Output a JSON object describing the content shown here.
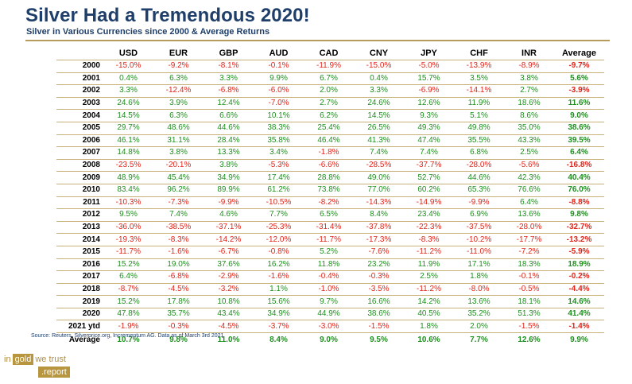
{
  "title": "Silver Had a Tremendous 2020!",
  "subtitle": "Silver in Various Currencies since 2000 & Average Returns",
  "table": {
    "columns": [
      "USD",
      "EUR",
      "GBP",
      "AUD",
      "CAD",
      "CNY",
      "JPY",
      "CHF",
      "INR",
      "Average"
    ],
    "rows": [
      {
        "year": "2000",
        "values": [
          "-15.0%",
          "-9.2%",
          "-8.1%",
          "-0.1%",
          "-11.9%",
          "-15.0%",
          "-5.0%",
          "-13.9%",
          "-8.9%",
          "-9.7%"
        ]
      },
      {
        "year": "2001",
        "values": [
          "0.4%",
          "6.3%",
          "3.3%",
          "9.9%",
          "6.7%",
          "0.4%",
          "15.7%",
          "3.5%",
          "3.8%",
          "5.6%"
        ]
      },
      {
        "year": "2002",
        "values": [
          "3.3%",
          "-12.4%",
          "-6.8%",
          "-6.0%",
          "2.0%",
          "3.3%",
          "-6.9%",
          "-14.1%",
          "2.7%",
          "-3.9%"
        ]
      },
      {
        "year": "2003",
        "values": [
          "24.6%",
          "3.9%",
          "12.4%",
          "-7.0%",
          "2.7%",
          "24.6%",
          "12.6%",
          "11.9%",
          "18.6%",
          "11.6%"
        ]
      },
      {
        "year": "2004",
        "values": [
          "14.5%",
          "6.3%",
          "6.6%",
          "10.1%",
          "6.2%",
          "14.5%",
          "9.3%",
          "5.1%",
          "8.6%",
          "9.0%"
        ]
      },
      {
        "year": "2005",
        "values": [
          "29.7%",
          "48.6%",
          "44.6%",
          "38.3%",
          "25.4%",
          "26.5%",
          "49.3%",
          "49.8%",
          "35.0%",
          "38.6%"
        ]
      },
      {
        "year": "2006",
        "values": [
          "46.1%",
          "31.1%",
          "28.4%",
          "35.8%",
          "46.4%",
          "41.3%",
          "47.4%",
          "35.5%",
          "43.3%",
          "39.5%"
        ]
      },
      {
        "year": "2007",
        "values": [
          "14.8%",
          "3.8%",
          "13.3%",
          "3.4%",
          "-1.8%",
          "7.4%",
          "7.4%",
          "6.8%",
          "2.5%",
          "6.4%"
        ]
      },
      {
        "year": "2008",
        "values": [
          "-23.5%",
          "-20.1%",
          "3.8%",
          "-5.3%",
          "-6.6%",
          "-28.5%",
          "-37.7%",
          "-28.0%",
          "-5.6%",
          "-16.8%"
        ]
      },
      {
        "year": "2009",
        "values": [
          "48.9%",
          "45.4%",
          "34.9%",
          "17.4%",
          "28.8%",
          "49.0%",
          "52.7%",
          "44.6%",
          "42.3%",
          "40.4%"
        ]
      },
      {
        "year": "2010",
        "values": [
          "83.4%",
          "96.2%",
          "89.9%",
          "61.2%",
          "73.8%",
          "77.0%",
          "60.2%",
          "65.3%",
          "76.6%",
          "76.0%"
        ]
      },
      {
        "year": "2011",
        "values": [
          "-10.3%",
          "-7.3%",
          "-9.9%",
          "-10.5%",
          "-8.2%",
          "-14.3%",
          "-14.9%",
          "-9.9%",
          "6.4%",
          "-8.8%"
        ]
      },
      {
        "year": "2012",
        "values": [
          "9.5%",
          "7.4%",
          "4.6%",
          "7.7%",
          "6.5%",
          "8.4%",
          "23.4%",
          "6.9%",
          "13.6%",
          "9.8%"
        ]
      },
      {
        "year": "2013",
        "values": [
          "-36.0%",
          "-38.5%",
          "-37.1%",
          "-25.3%",
          "-31.4%",
          "-37.8%",
          "-22.3%",
          "-37.5%",
          "-28.0%",
          "-32.7%"
        ]
      },
      {
        "year": "2014",
        "values": [
          "-19.3%",
          "-8.3%",
          "-14.2%",
          "-12.0%",
          "-11.7%",
          "-17.3%",
          "-8.3%",
          "-10.2%",
          "-17.7%",
          "-13.2%"
        ]
      },
      {
        "year": "2015",
        "values": [
          "-11.7%",
          "-1.6%",
          "-6.7%",
          "-0.8%",
          "5.2%",
          "-7.6%",
          "-11.2%",
          "-11.0%",
          "-7.2%",
          "-5.9%"
        ]
      },
      {
        "year": "2016",
        "values": [
          "15.2%",
          "19.0%",
          "37.6%",
          "16.2%",
          "11.8%",
          "23.2%",
          "11.9%",
          "17.1%",
          "18.3%",
          "18.9%"
        ]
      },
      {
        "year": "2017",
        "values": [
          "6.4%",
          "-6.8%",
          "-2.9%",
          "-1.6%",
          "-0.4%",
          "-0.3%",
          "2.5%",
          "1.8%",
          "-0.1%",
          "-0.2%"
        ]
      },
      {
        "year": "2018",
        "values": [
          "-8.7%",
          "-4.5%",
          "-3.2%",
          "1.1%",
          "-1.0%",
          "-3.5%",
          "-11.2%",
          "-8.0%",
          "-0.5%",
          "-4.4%"
        ]
      },
      {
        "year": "2019",
        "values": [
          "15.2%",
          "17.8%",
          "10.8%",
          "15.6%",
          "9.7%",
          "16.6%",
          "14.2%",
          "13.6%",
          "18.1%",
          "14.6%"
        ]
      },
      {
        "year": "2020",
        "values": [
          "47.8%",
          "35.7%",
          "43.4%",
          "34.9%",
          "44.9%",
          "38.6%",
          "40.5%",
          "35.2%",
          "51.3%",
          "41.4%"
        ]
      },
      {
        "year": "2021 ytd",
        "values": [
          "-1.9%",
          "-0.3%",
          "-4.5%",
          "-3.7%",
          "-3.0%",
          "-1.5%",
          "1.8%",
          "2.0%",
          "-1.5%",
          "-1.4%"
        ]
      }
    ],
    "average_row": {
      "label": "Average",
      "values": [
        "10.7%",
        "9.8%",
        "11.0%",
        "8.4%",
        "9.0%",
        "9.5%",
        "10.6%",
        "7.7%",
        "12.6%",
        "9.9%"
      ]
    }
  },
  "source": "Source: Reuters, Silverprice.org, Incrementum AG. Data as of March 3rd 2021",
  "logo": {
    "word_in": "in",
    "word_gold": "gold",
    "word_we_trust": "we trust",
    "word_report": ".report"
  },
  "colors": {
    "positive": "#1f8f1f",
    "negative": "#e0251a",
    "title": "#1f3f6a",
    "accent": "#b8953f"
  }
}
